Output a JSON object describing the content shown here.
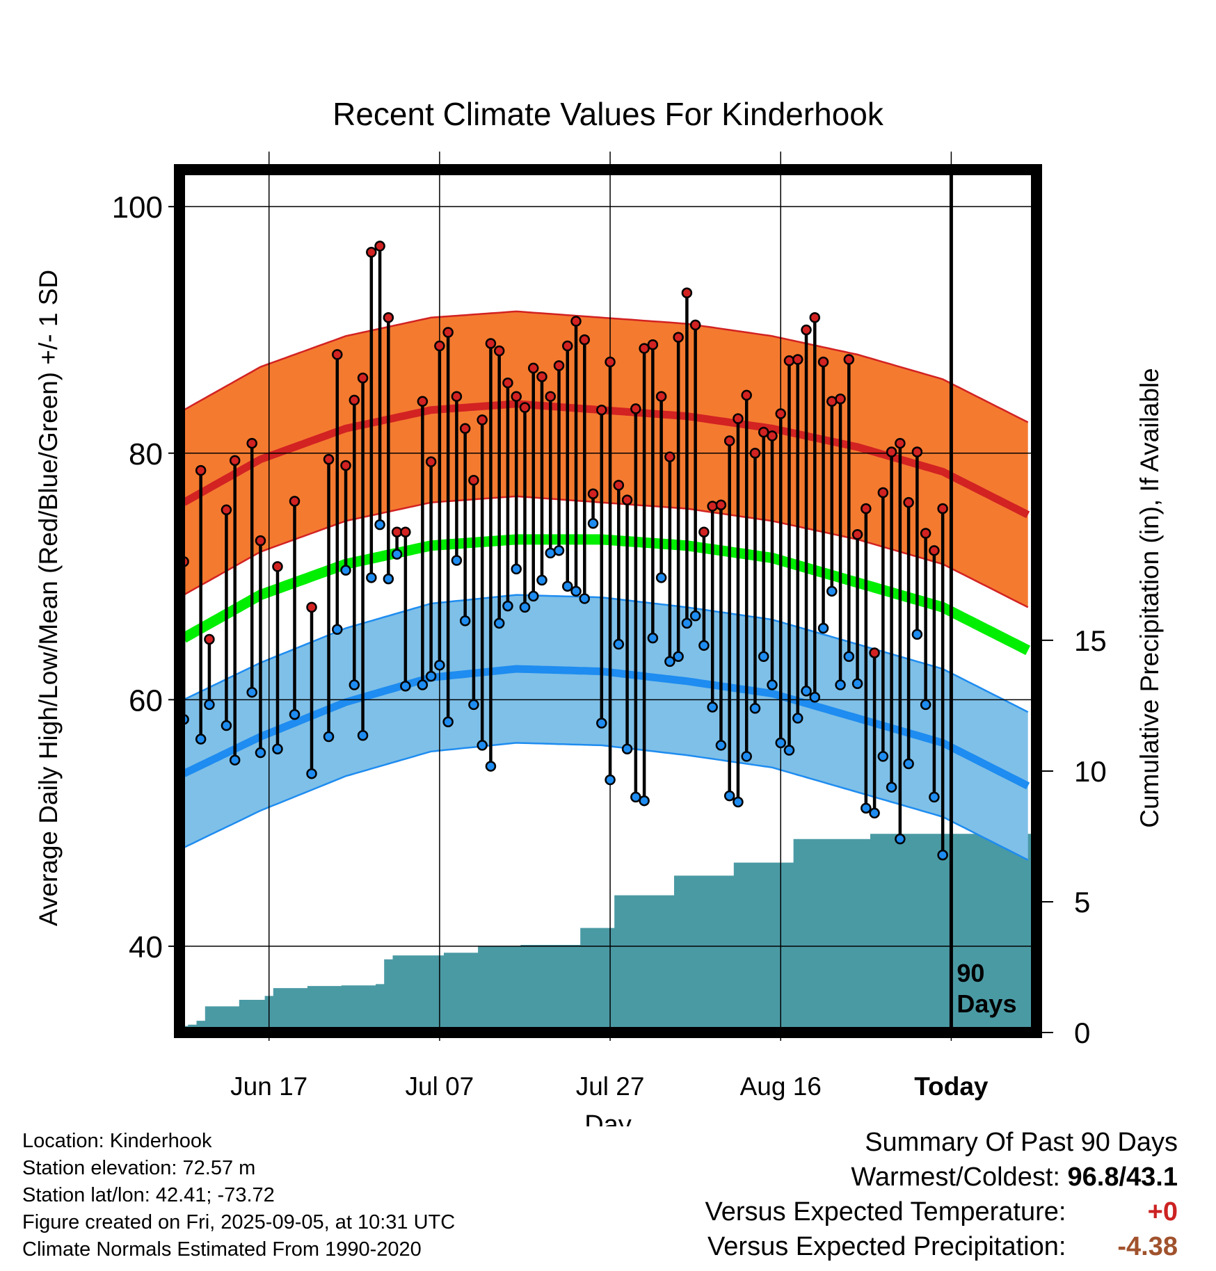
{
  "colors": {
    "high_band": "#f47a30",
    "high_mean": "#d22222",
    "low_band": "#7fc0e8",
    "low_mean": "#1e8cf0",
    "mean_line": "#00ee00",
    "precip": "#4a9aa4",
    "high_dot": "#d22222",
    "low_dot": "#1e8cf0"
  },
  "chart_data": {
    "type": "line",
    "title": "Recent Climate Values For Kinderhook",
    "xlabel": "Day",
    "ylabel": "Average Daily High/Low/Mean (Red/Blue/Green) +/- 1 SD",
    "y2label": "Cumulative Precipitation (in), If Available",
    "x_ticks": [
      {
        "day": 11,
        "label": "Jun 17"
      },
      {
        "day": 31,
        "label": "Jul 07"
      },
      {
        "day": 51,
        "label": "Jul 27"
      },
      {
        "day": 71,
        "label": "Aug 16"
      },
      {
        "day": 91,
        "label": "Today"
      }
    ],
    "xlim": [
      0.5,
      101
    ],
    "ylim": [
      33,
      103
    ],
    "y_ticks": [
      40,
      60,
      80,
      100
    ],
    "y2lim": [
      0,
      33
    ],
    "y2_ticks": [
      0,
      5,
      10,
      15
    ],
    "today_day": 91,
    "window_label_1": "90",
    "window_label_2": "Days",
    "grid": true,
    "normals": {
      "days": [
        1,
        10,
        20,
        30,
        40,
        50,
        60,
        70,
        80,
        90,
        100
      ],
      "high_mean": [
        76.0,
        79.5,
        82.0,
        83.5,
        84.0,
        83.5,
        83.0,
        82.0,
        80.5,
        78.5,
        75.0
      ],
      "high_sd": 7.5,
      "low_mean": [
        54.0,
        57.0,
        59.8,
        61.8,
        62.5,
        62.3,
        61.5,
        60.5,
        58.5,
        56.5,
        53.0
      ],
      "low_sd": 6.0,
      "mean": [
        65.0,
        68.5,
        71.0,
        72.5,
        73.0,
        73.0,
        72.5,
        71.5,
        69.5,
        67.5,
        64.0
      ]
    },
    "series": [
      {
        "name": "High",
        "days": [
          1,
          3,
          4,
          6,
          7,
          9,
          10,
          12,
          14,
          16,
          18,
          19,
          20,
          21,
          22,
          23,
          24,
          25,
          26,
          27,
          29,
          30,
          31,
          32,
          33,
          34,
          35,
          36,
          37,
          38,
          39,
          40,
          41,
          42,
          43,
          44,
          45,
          46,
          47,
          48,
          49,
          50,
          51,
          52,
          53,
          54,
          55,
          56,
          57,
          58,
          59,
          60,
          61,
          62,
          63,
          64,
          65,
          66,
          67,
          68,
          69,
          70,
          71,
          72,
          73,
          74,
          75,
          76,
          77,
          78,
          79,
          80,
          81,
          82,
          83,
          84,
          85,
          86,
          87,
          88,
          89,
          90
        ],
        "values": [
          71.2,
          78.6,
          64.9,
          75.4,
          79.4,
          80.8,
          72.9,
          70.8,
          76.1,
          67.5,
          79.5,
          88.0,
          79.0,
          84.3,
          86.1,
          96.3,
          96.8,
          91.0,
          73.6,
          73.6,
          84.2,
          79.3,
          88.7,
          89.8,
          84.6,
          82.0,
          77.8,
          82.7,
          88.9,
          88.3,
          85.7,
          84.6,
          83.7,
          86.9,
          86.2,
          84.6,
          87.1,
          88.7,
          90.7,
          89.2,
          76.7,
          83.5,
          87.4,
          77.4,
          76.2,
          83.6,
          88.5,
          88.8,
          84.6,
          79.7,
          89.4,
          93.0,
          90.4,
          73.6,
          75.7,
          75.8,
          81.0,
          82.8,
          84.7,
          80.0,
          81.7,
          81.4,
          83.2,
          87.5,
          87.6,
          90.0,
          91.0,
          87.4,
          84.2,
          84.4,
          87.6,
          73.4,
          75.5,
          63.8,
          76.8,
          80.1,
          80.8,
          76.0,
          80.1,
          73.5,
          72.1,
          75.5
        ]
      },
      {
        "name": "Low",
        "days": [
          1,
          3,
          4,
          6,
          7,
          9,
          10,
          12,
          14,
          16,
          18,
          19,
          20,
          21,
          22,
          23,
          24,
          25,
          26,
          27,
          29,
          30,
          31,
          32,
          33,
          34,
          35,
          36,
          37,
          38,
          39,
          40,
          41,
          42,
          43,
          44,
          45,
          46,
          47,
          48,
          49,
          50,
          51,
          52,
          53,
          54,
          55,
          56,
          57,
          58,
          59,
          60,
          61,
          62,
          63,
          64,
          65,
          66,
          67,
          68,
          69,
          70,
          71,
          72,
          73,
          74,
          75,
          76,
          77,
          78,
          79,
          80,
          81,
          82,
          83,
          84,
          85,
          86,
          87,
          88,
          89,
          90
        ],
        "values": [
          58.4,
          56.8,
          59.6,
          57.9,
          55.1,
          60.6,
          55.7,
          56.0,
          58.8,
          54.0,
          57.0,
          65.7,
          70.5,
          61.2,
          57.1,
          69.9,
          74.2,
          69.8,
          71.8,
          61.1,
          61.2,
          61.9,
          62.8,
          58.2,
          71.3,
          66.4,
          59.6,
          56.3,
          54.6,
          66.2,
          67.6,
          70.6,
          67.5,
          68.4,
          69.7,
          71.9,
          72.1,
          69.2,
          68.8,
          68.2,
          74.3,
          58.1,
          53.5,
          64.5,
          56.0,
          52.1,
          51.8,
          65.0,
          69.9,
          63.1,
          63.5,
          66.2,
          66.8,
          64.4,
          59.4,
          56.3,
          52.2,
          51.7,
          55.4,
          59.3,
          63.5,
          61.2,
          56.5,
          55.9,
          58.5,
          60.7,
          60.2,
          65.8,
          68.8,
          61.2,
          63.5,
          61.3,
          51.2,
          50.8,
          55.4,
          52.9,
          48.7,
          54.8,
          65.3,
          59.6,
          52.1,
          47.4
        ]
      }
    ],
    "precip": {
      "days": [
        1,
        2,
        3,
        4,
        5,
        6,
        7,
        8,
        9,
        10,
        11,
        12,
        13,
        14,
        15,
        16,
        17,
        18,
        19,
        20,
        21,
        22,
        23,
        24,
        25,
        26,
        27,
        28,
        29,
        30,
        31,
        32,
        33,
        34,
        35,
        36,
        37,
        38,
        39,
        40,
        41,
        42,
        43,
        44,
        45,
        46,
        47,
        48,
        49,
        50,
        51,
        52,
        53,
        54,
        55,
        56,
        57,
        58,
        59,
        60,
        61,
        62,
        63,
        64,
        65,
        66,
        67,
        68,
        69,
        70,
        71,
        72,
        73,
        74,
        75,
        76,
        77,
        78,
        79,
        80,
        81,
        82,
        83,
        84,
        85,
        86,
        87,
        88,
        89,
        90,
        91,
        92,
        93,
        94,
        95,
        96,
        97,
        98,
        99,
        100
      ],
      "values": [
        0.25,
        0.3,
        0.45,
        1.0,
        1.0,
        1.0,
        1.0,
        1.25,
        1.25,
        1.25,
        1.4,
        1.7,
        1.7,
        1.7,
        1.7,
        1.78,
        1.78,
        1.78,
        1.78,
        1.8,
        1.8,
        1.8,
        1.8,
        1.85,
        2.8,
        2.95,
        2.95,
        2.95,
        2.95,
        2.95,
        2.95,
        3.05,
        3.05,
        3.05,
        3.05,
        3.3,
        3.3,
        3.3,
        3.3,
        3.3,
        3.35,
        3.35,
        3.35,
        3.35,
        3.35,
        3.35,
        3.35,
        4.0,
        4.0,
        4.0,
        4.0,
        5.25,
        5.25,
        5.25,
        5.25,
        5.25,
        5.25,
        5.25,
        6.0,
        6.0,
        6.0,
        6.0,
        6.0,
        6.0,
        6.0,
        6.5,
        6.5,
        6.5,
        6.5,
        6.5,
        6.5,
        6.5,
        7.4,
        7.4,
        7.4,
        7.4,
        7.4,
        7.4,
        7.4,
        7.4,
        7.4,
        7.6,
        7.6,
        7.6,
        7.6,
        7.6,
        7.6,
        7.6,
        7.6,
        7.6,
        7.6,
        7.6,
        7.6,
        7.6,
        7.6,
        7.6,
        7.6,
        7.6,
        7.6,
        7.6
      ]
    }
  },
  "info": {
    "location": "Location: Kinderhook",
    "elevation": "Station elevation: 72.57 m",
    "latlon": "Station lat/lon: 42.41; -73.72",
    "created": "Figure created on Fri, 2025-09-05, at 10:31 UTC",
    "normals": "Climate Normals Estimated From 1990-2020"
  },
  "summary": {
    "title": "Summary Of Past 90 Days",
    "warm_label": "Warmest/Coldest:",
    "warm_value": "96.8/43.1",
    "temp_label": "Versus Expected Temperature:",
    "temp_value": "+0",
    "precip_label": "Versus Expected Precipitation:",
    "precip_value": "-4.38"
  }
}
